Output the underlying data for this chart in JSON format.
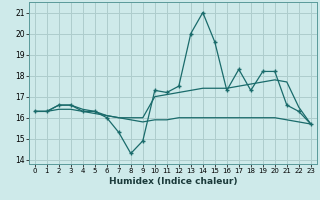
{
  "xlabel": "Humidex (Indice chaleur)",
  "bg_color": "#ceeaea",
  "grid_color": "#aecdcd",
  "line_color": "#1a6b6b",
  "xlim": [
    -0.5,
    23.5
  ],
  "ylim": [
    13.8,
    21.5
  ],
  "yticks": [
    14,
    15,
    16,
    17,
    18,
    19,
    20,
    21
  ],
  "xticks": [
    0,
    1,
    2,
    3,
    4,
    5,
    6,
    7,
    8,
    9,
    10,
    11,
    12,
    13,
    14,
    15,
    16,
    17,
    18,
    19,
    20,
    21,
    22,
    23
  ],
  "x": [
    0,
    1,
    2,
    3,
    4,
    5,
    6,
    7,
    8,
    9,
    10,
    11,
    12,
    13,
    14,
    15,
    16,
    17,
    18,
    19,
    20,
    21,
    22,
    23
  ],
  "line1": [
    16.3,
    16.3,
    16.6,
    16.6,
    16.3,
    16.3,
    16.0,
    15.3,
    14.3,
    14.9,
    17.3,
    17.2,
    17.5,
    20.0,
    21.0,
    19.6,
    17.3,
    18.3,
    17.3,
    18.2,
    18.2,
    16.6,
    16.3,
    15.7
  ],
  "line2": [
    16.3,
    16.3,
    16.6,
    16.6,
    16.4,
    16.3,
    16.1,
    16.0,
    16.0,
    16.0,
    17.0,
    17.1,
    17.2,
    17.3,
    17.4,
    17.4,
    17.4,
    17.5,
    17.6,
    17.7,
    17.8,
    17.7,
    16.5,
    15.7
  ],
  "line3": [
    16.3,
    16.3,
    16.4,
    16.4,
    16.3,
    16.2,
    16.1,
    16.0,
    15.9,
    15.8,
    15.9,
    15.9,
    16.0,
    16.0,
    16.0,
    16.0,
    16.0,
    16.0,
    16.0,
    16.0,
    16.0,
    15.9,
    15.8,
    15.7
  ]
}
